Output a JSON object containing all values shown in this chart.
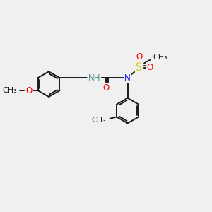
{
  "background_color": "#f0f0f0",
  "bond_color": "#1a1a1a",
  "atom_colors": {
    "O": "#ff0000",
    "N_amide": "#4a9090",
    "N_sulfonyl": "#0000ff",
    "S": "#cccc00",
    "C": "#1a1a1a"
  },
  "lw": 1.4,
  "fs": 8.5,
  "figsize": [
    3.0,
    3.0
  ],
  "dpi": 100,
  "xlim": [
    -0.5,
    7.5
  ],
  "ylim": [
    -3.8,
    2.2
  ]
}
